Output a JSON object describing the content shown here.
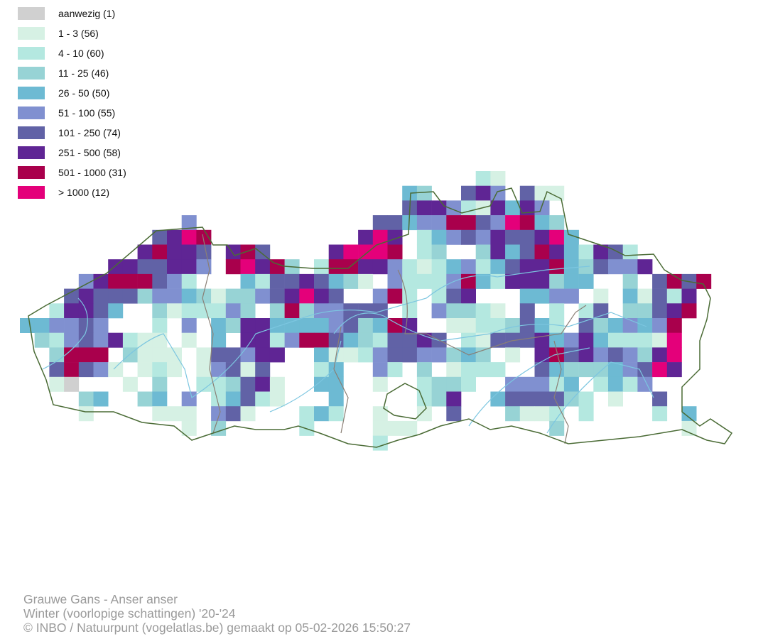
{
  "legend": {
    "items": [
      {
        "code": "g",
        "label": "aanwezig (1)",
        "color": "#d0d0d0"
      },
      {
        "code": "1",
        "label": "1 - 3 (56)",
        "color": "#d6f1e4"
      },
      {
        "code": "2",
        "label": "4 - 10 (60)",
        "color": "#b4e8e0"
      },
      {
        "code": "3",
        "label": "11 - 25 (46)",
        "color": "#97d3d5"
      },
      {
        "code": "4",
        "label": "26 - 50 (50)",
        "color": "#6dbad3"
      },
      {
        "code": "5",
        "label": "51 - 100 (55)",
        "color": "#8090d0"
      },
      {
        "code": "6",
        "label": "101 - 250 (74)",
        "color": "#6162a6"
      },
      {
        "code": "7",
        "label": "251 - 500 (58)",
        "color": "#5f2594"
      },
      {
        "code": "8",
        "label": "501 - 1000 (31)",
        "color": "#a9004c"
      },
      {
        "code": "9",
        "label": "> 1000 (12)",
        "color": "#e4007a"
      }
    ]
  },
  "map_grid": {
    "rows": [
      "000000000000000000000000000000021000000000000000",
      "000000000000000000000000004300675061100000000000",
      "000000000000000000000000006775217475000000000000",
      "000000000005000000000000664558865984300000000000",
      "000000000679800000000007970245657667940000000000",
      "000000007877607860000799980230037468742762000000",
      "000000776677508978302887752124524677843655700000",
      "000057888652000426676431052225842777344003068680",
      "000676663554313356797600582026700044550104162700",
      "002776400312225303835566602053321060202603367800",
      "445565000205043774444563487001122364206345458000",
      "032565721101040772588643266760216667457422219000",
      "003888031110166577004112566553430107867565379000",
      "006865101210156160002400520301222006433345697000",
      "001g000103002236710044001002332005552402425000000",
      "000034003405024621000400000237004666632010060000",
      "000010000111056100024200100106000311202000020400",
      "000000000001030000020000111000000000300000000100",
      "000000000000000000000000200000000000000000000000"
    ]
  },
  "footer": {
    "species": "Grauwe Gans - Anser anser",
    "period": "Winter (voorlopige schattingen) '20-'24",
    "credit": "© INBO / Natuurpunt (vogelatlas.be) gemaakt op 05-02-2026 15:50:27"
  }
}
